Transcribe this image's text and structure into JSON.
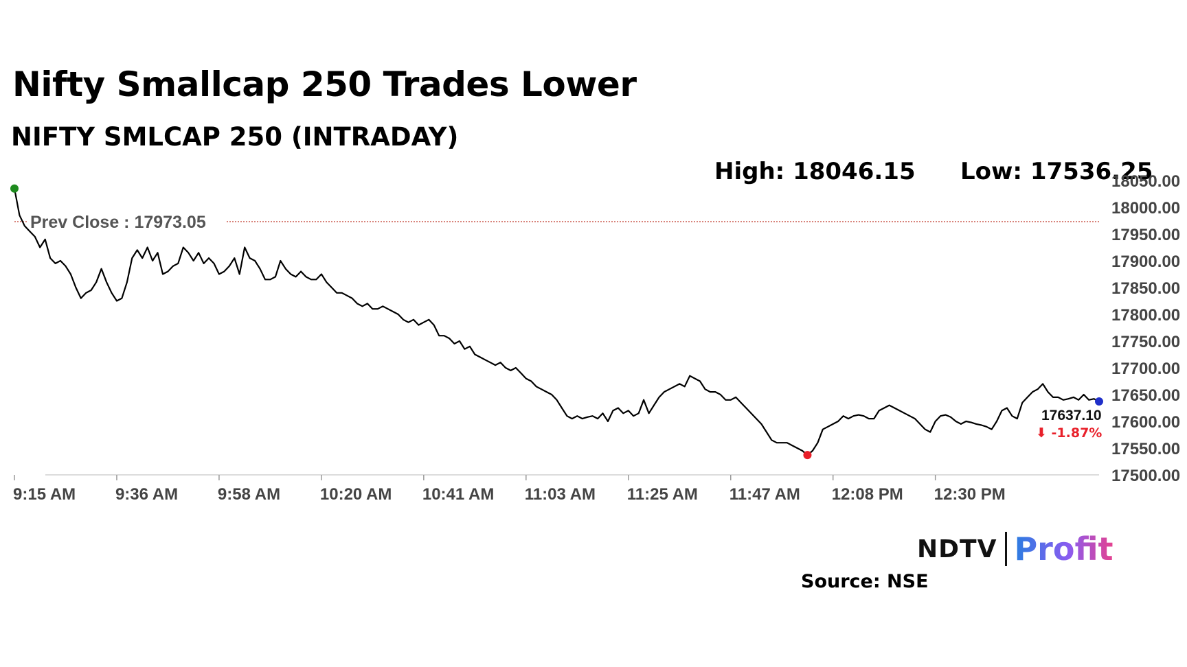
{
  "header": {
    "title": "Nifty Smallcap 250 Trades Lower",
    "subtitle": "NIFTY SMLCAP 250 (INTRADAY)",
    "high_label": "High: 18046.15",
    "low_label": "Low: 17536.25"
  },
  "footer": {
    "logo_ndtv": "NDTV",
    "logo_profit": "Profit",
    "source": "Source: NSE"
  },
  "chart_data": {
    "type": "line",
    "series": [
      {
        "points": [
          [
            0,
            18035
          ],
          [
            1,
            17985
          ],
          [
            2,
            17965
          ],
          [
            3,
            17955
          ],
          [
            4,
            17945
          ],
          [
            5,
            17925
          ],
          [
            6,
            17940
          ],
          [
            7,
            17905
          ],
          [
            8,
            17895
          ],
          [
            9,
            17900
          ],
          [
            10,
            17890
          ],
          [
            11,
            17875
          ],
          [
            12,
            17850
          ],
          [
            13,
            17830
          ],
          [
            14,
            17840
          ],
          [
            15,
            17845
          ],
          [
            16,
            17860
          ],
          [
            17,
            17885
          ],
          [
            18,
            17860
          ],
          [
            19,
            17840
          ],
          [
            20,
            17825
          ],
          [
            21,
            17830
          ],
          [
            22,
            17860
          ],
          [
            23,
            17905
          ],
          [
            24,
            17920
          ],
          [
            25,
            17905
          ],
          [
            26,
            17925
          ],
          [
            27,
            17900
          ],
          [
            28,
            17915
          ],
          [
            29,
            17875
          ],
          [
            30,
            17880
          ],
          [
            31,
            17890
          ],
          [
            32,
            17895
          ],
          [
            33,
            17925
          ],
          [
            34,
            17915
          ],
          [
            35,
            17900
          ],
          [
            36,
            17915
          ],
          [
            37,
            17895
          ],
          [
            38,
            17905
          ],
          [
            39,
            17895
          ],
          [
            40,
            17875
          ],
          [
            41,
            17880
          ],
          [
            42,
            17890
          ],
          [
            43,
            17905
          ],
          [
            44,
            17875
          ],
          [
            45,
            17925
          ],
          [
            46,
            17905
          ],
          [
            47,
            17900
          ],
          [
            48,
            17885
          ],
          [
            49,
            17865
          ],
          [
            50,
            17865
          ],
          [
            51,
            17870
          ],
          [
            52,
            17900
          ],
          [
            53,
            17885
          ],
          [
            54,
            17875
          ],
          [
            55,
            17870
          ],
          [
            56,
            17880
          ],
          [
            57,
            17870
          ],
          [
            58,
            17865
          ],
          [
            59,
            17865
          ],
          [
            60,
            17875
          ],
          [
            61,
            17860
          ],
          [
            62,
            17850
          ],
          [
            63,
            17840
          ],
          [
            64,
            17840
          ],
          [
            65,
            17835
          ],
          [
            66,
            17830
          ],
          [
            67,
            17820
          ],
          [
            68,
            17815
          ],
          [
            69,
            17820
          ],
          [
            70,
            17810
          ],
          [
            71,
            17810
          ],
          [
            72,
            17815
          ],
          [
            73,
            17810
          ],
          [
            74,
            17805
          ],
          [
            75,
            17800
          ],
          [
            76,
            17790
          ],
          [
            77,
            17785
          ],
          [
            78,
            17790
          ],
          [
            79,
            17780
          ],
          [
            80,
            17785
          ],
          [
            81,
            17790
          ],
          [
            82,
            17780
          ],
          [
            83,
            17760
          ],
          [
            84,
            17760
          ],
          [
            85,
            17755
          ],
          [
            86,
            17745
          ],
          [
            87,
            17750
          ],
          [
            88,
            17735
          ],
          [
            89,
            17740
          ],
          [
            90,
            17725
          ],
          [
            91,
            17720
          ],
          [
            92,
            17715
          ],
          [
            93,
            17710
          ],
          [
            94,
            17705
          ],
          [
            95,
            17710
          ],
          [
            96,
            17700
          ],
          [
            97,
            17695
          ],
          [
            98,
            17700
          ],
          [
            99,
            17690
          ],
          [
            100,
            17680
          ],
          [
            101,
            17675
          ],
          [
            102,
            17665
          ],
          [
            103,
            17660
          ],
          [
            104,
            17655
          ],
          [
            105,
            17650
          ],
          [
            106,
            17640
          ],
          [
            107,
            17625
          ],
          [
            108,
            17610
          ],
          [
            109,
            17605
          ],
          [
            110,
            17610
          ],
          [
            111,
            17605
          ],
          [
            112,
            17608
          ],
          [
            113,
            17610
          ],
          [
            114,
            17605
          ],
          [
            115,
            17615
          ],
          [
            116,
            17600
          ],
          [
            117,
            17620
          ],
          [
            118,
            17625
          ],
          [
            119,
            17615
          ],
          [
            120,
            17620
          ],
          [
            121,
            17610
          ],
          [
            122,
            17615
          ],
          [
            123,
            17640
          ],
          [
            124,
            17615
          ],
          [
            125,
            17630
          ],
          [
            126,
            17645
          ],
          [
            127,
            17655
          ],
          [
            128,
            17660
          ],
          [
            129,
            17665
          ],
          [
            130,
            17670
          ],
          [
            131,
            17665
          ],
          [
            132,
            17685
          ],
          [
            133,
            17680
          ],
          [
            134,
            17675
          ],
          [
            135,
            17660
          ],
          [
            136,
            17655
          ],
          [
            137,
            17655
          ],
          [
            138,
            17650
          ],
          [
            139,
            17640
          ],
          [
            140,
            17640
          ],
          [
            141,
            17645
          ],
          [
            142,
            17635
          ],
          [
            143,
            17625
          ],
          [
            144,
            17615
          ],
          [
            145,
            17605
          ],
          [
            146,
            17595
          ],
          [
            147,
            17580
          ],
          [
            148,
            17565
          ],
          [
            149,
            17560
          ],
          [
            150,
            17560
          ],
          [
            151,
            17560
          ],
          [
            152,
            17555
          ],
          [
            153,
            17550
          ],
          [
            154,
            17545
          ],
          [
            155,
            17537
          ],
          [
            156,
            17545
          ],
          [
            157,
            17560
          ],
          [
            158,
            17585
          ],
          [
            159,
            17590
          ],
          [
            160,
            17595
          ],
          [
            161,
            17600
          ],
          [
            162,
            17610
          ],
          [
            163,
            17605
          ],
          [
            164,
            17610
          ],
          [
            165,
            17612
          ],
          [
            166,
            17610
          ],
          [
            167,
            17605
          ],
          [
            168,
            17605
          ],
          [
            169,
            17620
          ],
          [
            170,
            17625
          ],
          [
            171,
            17630
          ],
          [
            172,
            17625
          ],
          [
            173,
            17620
          ],
          [
            174,
            17615
          ],
          [
            175,
            17610
          ],
          [
            176,
            17605
          ],
          [
            177,
            17595
          ],
          [
            178,
            17585
          ],
          [
            179,
            17580
          ],
          [
            180,
            17600
          ],
          [
            181,
            17610
          ],
          [
            182,
            17612
          ],
          [
            183,
            17608
          ],
          [
            184,
            17600
          ],
          [
            185,
            17595
          ],
          [
            186,
            17600
          ],
          [
            187,
            17598
          ],
          [
            188,
            17595
          ],
          [
            189,
            17593
          ],
          [
            190,
            17590
          ],
          [
            191,
            17585
          ],
          [
            192,
            17600
          ],
          [
            193,
            17620
          ],
          [
            194,
            17625
          ],
          [
            195,
            17610
          ],
          [
            196,
            17605
          ],
          [
            197,
            17635
          ],
          [
            198,
            17645
          ],
          [
            199,
            17655
          ],
          [
            200,
            17660
          ],
          [
            201,
            17670
          ],
          [
            202,
            17655
          ],
          [
            203,
            17645
          ],
          [
            204,
            17645
          ],
          [
            205,
            17640
          ],
          [
            206,
            17642
          ],
          [
            207,
            17645
          ],
          [
            208,
            17640
          ],
          [
            209,
            17650
          ],
          [
            210,
            17640
          ],
          [
            211,
            17642
          ],
          [
            212,
            17637.1
          ]
        ]
      }
    ],
    "x_tick_positions": [
      0,
      20,
      40,
      60,
      80,
      100,
      120,
      140,
      160,
      180
    ],
    "x_tick_labels": [
      "9:15 AM",
      "9:36 AM",
      "9:58 AM",
      "10:20 AM",
      "10:41 AM",
      "11:03 AM",
      "11:25 AM",
      "11:47 AM",
      "12:08 PM",
      "12:30 PM"
    ],
    "xlim": [
      0,
      212
    ],
    "y_ticks": [
      17500,
      17550,
      17600,
      17650,
      17700,
      17750,
      17800,
      17850,
      17900,
      17950,
      18000,
      18050
    ],
    "y_tick_labels": [
      "17500.00",
      "17550.00",
      "17600.00",
      "17650.00",
      "17700.00",
      "17750.00",
      "17800.00",
      "17850.00",
      "17900.00",
      "17950.00",
      "18000.00",
      "18050.00"
    ],
    "ylim": [
      17500,
      18050
    ],
    "prev_close": 17973.05,
    "prev_close_label": "Prev Close : 17973.05",
    "last_value_label": "17637.10",
    "change_label": "⬇ -1.87%",
    "colors": {
      "line": "#000000",
      "prev_close": "#c0392b",
      "start_marker": "#1e8b1e",
      "low_marker": "#e8202a",
      "end_marker": "#1f2fc9",
      "change": "#e8202a",
      "axis": "#d0d0d0"
    }
  }
}
